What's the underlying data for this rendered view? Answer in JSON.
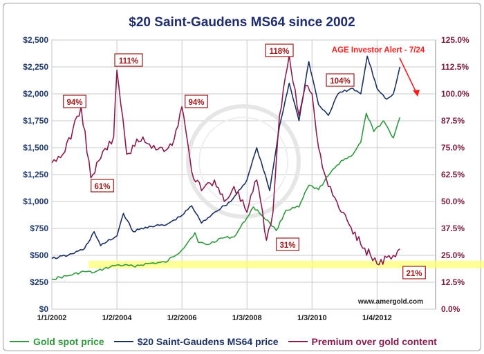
{
  "chart_data": {
    "type": "line",
    "title": "$20 Saint-Gaudens MS64 since 2002",
    "x_tick_labels": [
      "1/1/2002",
      "1/2/2004",
      "1/2/2006",
      "1/3/2008",
      "1/3/2010",
      "1/4/2012"
    ],
    "xlim": [
      2002.0,
      2013.8
    ],
    "y_left": {
      "ticks": [
        "$0",
        "$250",
        "$500",
        "$750",
        "$1,000",
        "$1,250",
        "$1,500",
        "$1,750",
        "$2,000",
        "$2,250",
        "$2,500"
      ],
      "ylim": [
        0,
        2500
      ]
    },
    "y_right": {
      "ticks": [
        "0.0%",
        "12.5%",
        "25.0%",
        "37.5%",
        "50.0%",
        "62.5%",
        "75.0%",
        "87.5%",
        "100.0%",
        "112.5%",
        "125.0%"
      ],
      "ylim": [
        0,
        125
      ]
    },
    "series": [
      {
        "name": "Gold spot price",
        "axis": "left",
        "color": "#2e9a3c",
        "x": [
          2002.0,
          2002.5,
          2003.0,
          2003.3,
          2003.6,
          2004.0,
          2004.5,
          2005.0,
          2005.5,
          2006.0,
          2006.4,
          2006.5,
          2006.8,
          2007.2,
          2007.6,
          2008.0,
          2008.2,
          2008.7,
          2008.9,
          2009.2,
          2009.6,
          2009.9,
          2010.2,
          2010.5,
          2010.9,
          2011.2,
          2011.5,
          2011.67,
          2011.9,
          2012.2,
          2012.5,
          2012.7
        ],
        "y": [
          280,
          310,
          350,
          340,
          375,
          410,
          400,
          425,
          435,
          550,
          710,
          620,
          600,
          660,
          670,
          850,
          950,
          800,
          730,
          920,
          950,
          1150,
          1110,
          1240,
          1380,
          1420,
          1550,
          1820,
          1650,
          1750,
          1590,
          1780
        ]
      },
      {
        "name": "$20 Saint-Gaudens MS64 price",
        "axis": "left",
        "color": "#1a2f63",
        "x": [
          2002.0,
          2002.5,
          2003.0,
          2003.3,
          2003.5,
          2004.0,
          2004.2,
          2004.5,
          2005.0,
          2005.5,
          2006.0,
          2006.3,
          2006.6,
          2007.0,
          2007.5,
          2008.0,
          2008.3,
          2008.7,
          2009.0,
          2009.3,
          2009.6,
          2009.9,
          2010.2,
          2010.5,
          2010.8,
          2011.2,
          2011.5,
          2011.7,
          2012.0,
          2012.3,
          2012.5,
          2012.7
        ],
        "y": [
          470,
          500,
          560,
          720,
          590,
          680,
          890,
          720,
          770,
          780,
          870,
          960,
          800,
          900,
          1000,
          1200,
          1500,
          1100,
          1700,
          2100,
          1750,
          2300,
          1900,
          1800,
          2000,
          2050,
          2000,
          2350,
          2050,
          1950,
          2000,
          2250
        ]
      },
      {
        "name": "Premium over gold content",
        "axis": "right",
        "color": "#8b1a4e",
        "x": [
          2002.0,
          2002.4,
          2002.9,
          2003.2,
          2003.5,
          2003.9,
          2004.0,
          2004.3,
          2004.8,
          2005.2,
          2005.7,
          2006.0,
          2006.3,
          2006.6,
          2007.0,
          2007.3,
          2007.6,
          2008.0,
          2008.3,
          2008.6,
          2008.8,
          2009.0,
          2009.3,
          2009.6,
          2009.8,
          2010.0,
          2010.2,
          2010.5,
          2010.9,
          2011.2,
          2011.5,
          2011.8,
          2012.0,
          2012.3,
          2012.5,
          2012.7
        ],
        "y": [
          68,
          73,
          94,
          61,
          70,
          80,
          111,
          72,
          80,
          74,
          76,
          94,
          64,
          55,
          60,
          50,
          57,
          45,
          60,
          32,
          45,
          90,
          118,
          90,
          104,
          100,
          75,
          57,
          45,
          38,
          30,
          25,
          21,
          24,
          25,
          28
        ]
      }
    ],
    "annotations": [
      {
        "text": "94%"
      },
      {
        "text": "111%"
      },
      {
        "text": "61%"
      },
      {
        "text": "94%"
      },
      {
        "text": "118%"
      },
      {
        "text": "104%"
      },
      {
        "text": "31%"
      },
      {
        "text": "21%"
      }
    ],
    "alert_text": "AGE Investor Alert - 7/24",
    "watermark_url": "www.amergold.com",
    "highlight_band_usd": [
      380,
      450
    ],
    "grid": true,
    "legend_position": "bottom"
  }
}
